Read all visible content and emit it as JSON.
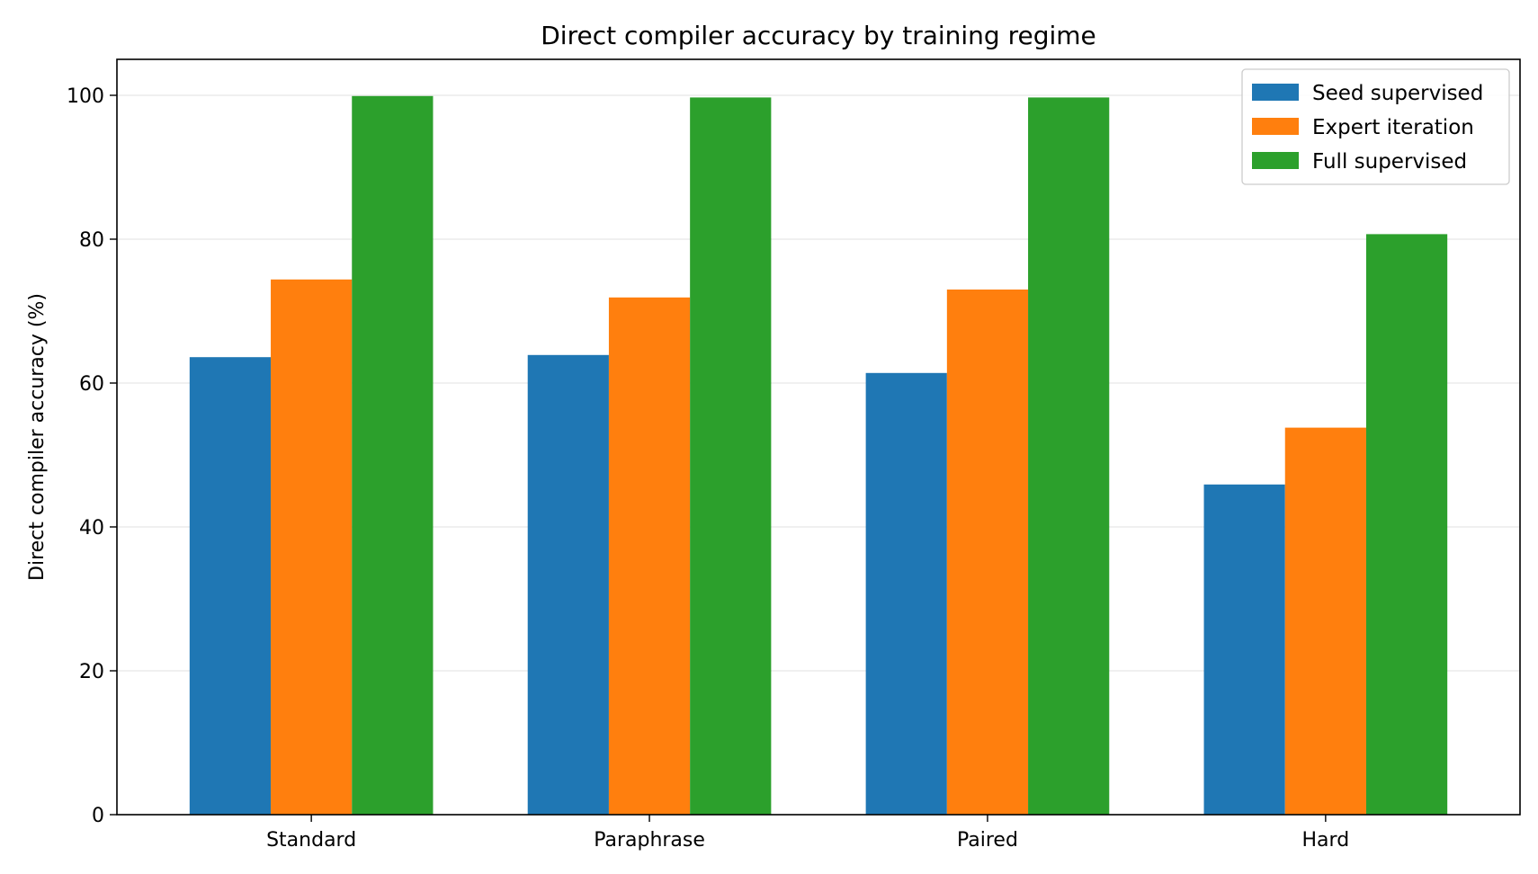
{
  "chart_data": {
    "type": "bar",
    "title": "Direct compiler accuracy by training regime",
    "xlabel": "",
    "ylabel": "Direct compiler accuracy (%)",
    "categories": [
      "Standard",
      "Paraphrase",
      "Paired",
      "Hard"
    ],
    "series": [
      {
        "name": "Seed supervised",
        "color": "#1f77b4",
        "values": [
          63.6,
          63.9,
          61.4,
          45.9
        ]
      },
      {
        "name": "Expert iteration",
        "color": "#ff7f0e",
        "values": [
          74.4,
          71.9,
          73.0,
          53.8
        ]
      },
      {
        "name": "Full supervised",
        "color": "#2ca02c",
        "values": [
          99.9,
          99.7,
          99.7,
          80.7
        ]
      }
    ],
    "ylim": [
      0,
      105
    ],
    "yticks": [
      0,
      20,
      40,
      60,
      80,
      100
    ],
    "grid": true,
    "legend_position": "top-right"
  }
}
